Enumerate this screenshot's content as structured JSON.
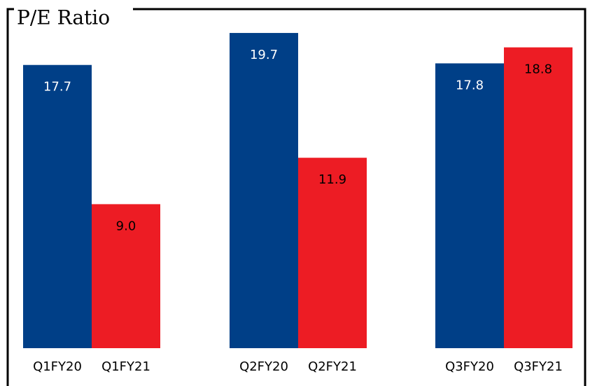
{
  "chart_data": {
    "type": "bar",
    "title": "P/E Ratio",
    "categories": [
      "Q1FY20",
      "Q1FY21",
      "Q2FY20",
      "Q2FY21",
      "Q3FY20",
      "Q3FY21"
    ],
    "values": [
      17.7,
      9.0,
      19.7,
      11.9,
      17.8,
      18.8
    ],
    "value_labels": [
      "17.7",
      "9.0",
      "19.7",
      "11.9",
      "17.8",
      "18.8"
    ],
    "colors": [
      "#003f87",
      "#ed1c24",
      "#003f87",
      "#ed1c24",
      "#003f87",
      "#ed1c24"
    ]
  }
}
